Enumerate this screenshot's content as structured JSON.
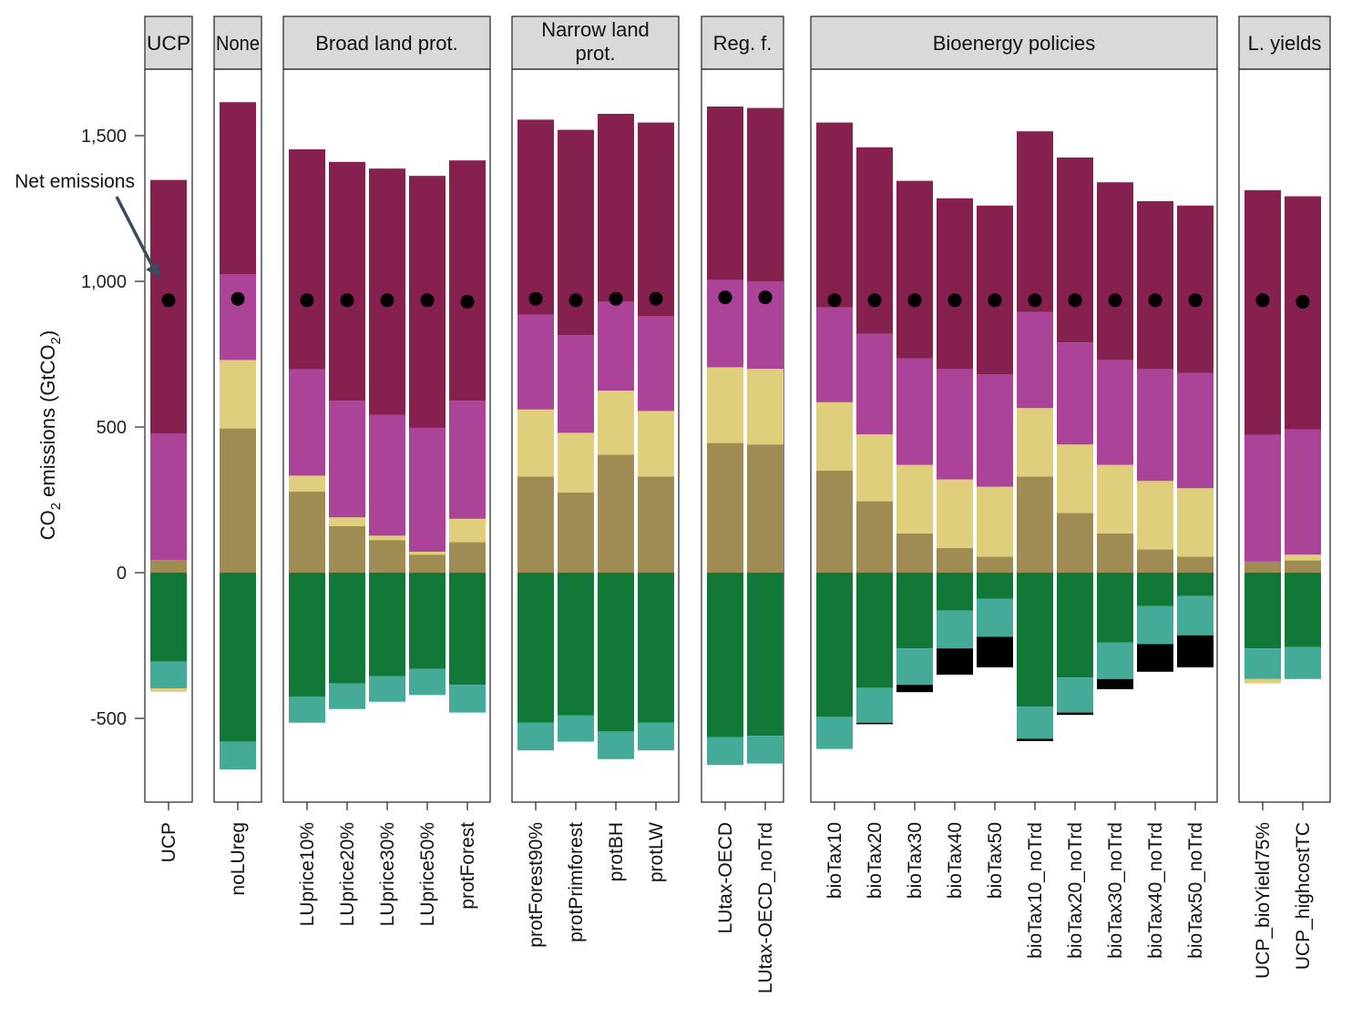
{
  "chart_data": {
    "type": "bar",
    "stacked": true,
    "ylabel": "CO2 emissions (GtCO2)",
    "ylabel_parts": {
      "pre": "CO",
      "sub1": "2",
      "mid": " emissions (GtCO",
      "sub2": "2",
      "post": ")"
    },
    "ylim": [
      -790,
      1750
    ],
    "yticks": [
      -500,
      0,
      500,
      1000,
      1500
    ],
    "ytick_labels": [
      "-500",
      "0",
      "500",
      "1,000",
      "1,500"
    ],
    "annotation": "Net emissions",
    "colors": {
      "c1": "#85204f",
      "c2": "#ab4399",
      "c3": "#dfce7c",
      "c4": "#9e8c52",
      "n1": "#117838",
      "n2": "#44ab99",
      "n3": "#dfce7c",
      "n4": "#000000",
      "net": "#000000"
    },
    "panels": [
      {
        "label": "UCP",
        "scenarios": [
          {
            "name": "UCP",
            "pos": [
              870,
              435,
              0,
              43
            ],
            "neg": [
              305,
              92,
              12,
              0
            ],
            "net": 935
          }
        ]
      },
      {
        "label": "None",
        "scenarios": [
          {
            "name": "noLUreg",
            "pos": [
              590,
              295,
              235,
              495
            ],
            "neg": [
              580,
              95,
              0,
              0
            ],
            "net": 940
          }
        ]
      },
      {
        "label": "Broad land prot.",
        "scenarios": [
          {
            "name": "LUprice10%",
            "pos": [
              755,
              365,
              55,
              278
            ],
            "neg": [
              425,
              90,
              0,
              0
            ],
            "net": 935
          },
          {
            "name": "LUprice20%",
            "pos": [
              820,
              400,
              30,
              160
            ],
            "neg": [
              380,
              88,
              0,
              0
            ],
            "net": 935
          },
          {
            "name": "LUprice30%",
            "pos": [
              845,
              415,
              15,
              112
            ],
            "neg": [
              355,
              88,
              0,
              0
            ],
            "net": 935
          },
          {
            "name": "LUprice50%",
            "pos": [
              865,
              425,
              10,
              62
            ],
            "neg": [
              330,
              90,
              0,
              0
            ],
            "net": 935
          },
          {
            "name": "protForest",
            "pos": [
              825,
              405,
              80,
              105
            ],
            "neg": [
              385,
              95,
              0,
              0
            ],
            "net": 930
          }
        ]
      },
      {
        "label": "Narrow land prot.",
        "label_lines": [
          "Narrow land",
          "prot."
        ],
        "scenarios": [
          {
            "name": "protForest90%",
            "pos": [
              670,
              325,
              230,
              330
            ],
            "neg": [
              515,
              95,
              0,
              0
            ],
            "net": 940
          },
          {
            "name": "protPrimforest",
            "pos": [
              705,
              335,
              205,
              275
            ],
            "neg": [
              490,
              90,
              0,
              0
            ],
            "net": 935
          },
          {
            "name": "protBH",
            "pos": [
              645,
              305,
              220,
              405
            ],
            "neg": [
              545,
              95,
              0,
              0
            ],
            "net": 940
          },
          {
            "name": "protLW",
            "pos": [
              665,
              325,
              225,
              330
            ],
            "neg": [
              515,
              95,
              0,
              0
            ],
            "net": 940
          }
        ]
      },
      {
        "label": "Reg. f.",
        "scenarios": [
          {
            "name": "LUtax-OECD",
            "pos": [
              595,
              300,
              260,
              445
            ],
            "neg": [
              565,
              95,
              0,
              0
            ],
            "net": 945
          },
          {
            "name": "LUtax-OECD_noTrd",
            "pos": [
              595,
              300,
              260,
              440
            ],
            "neg": [
              560,
              95,
              0,
              0
            ],
            "net": 945
          }
        ]
      },
      {
        "label": "Bioenergy policies",
        "scenarios": [
          {
            "name": "bioTax10",
            "pos": [
              635,
              325,
              235,
              350
            ],
            "neg": [
              495,
              110,
              0,
              0
            ],
            "net": 935
          },
          {
            "name": "bioTax20",
            "pos": [
              640,
              345,
              230,
              245
            ],
            "neg": [
              395,
              120,
              0,
              5
            ],
            "net": 935
          },
          {
            "name": "bioTax30",
            "pos": [
              610,
              365,
              235,
              135
            ],
            "neg": [
              260,
              125,
              0,
              25
            ],
            "net": 935
          },
          {
            "name": "bioTax40",
            "pos": [
              585,
              380,
              235,
              85
            ],
            "neg": [
              130,
              130,
              0,
              90
            ],
            "net": 935
          },
          {
            "name": "bioTax50",
            "pos": [
              580,
              385,
              240,
              55
            ],
            "neg": [
              90,
              130,
              0,
              105
            ],
            "net": 935
          },
          {
            "name": "bioTax10_noTrd",
            "pos": [
              620,
              330,
              235,
              330
            ],
            "neg": [
              460,
              110,
              0,
              8
            ],
            "net": 935
          },
          {
            "name": "bioTax20_noTrd",
            "pos": [
              635,
              350,
              235,
              205
            ],
            "neg": [
              360,
              120,
              0,
              8
            ],
            "net": 935
          },
          {
            "name": "bioTax30_noTrd",
            "pos": [
              610,
              360,
              235,
              135
            ],
            "neg": [
              240,
              125,
              0,
              35
            ],
            "net": 935
          },
          {
            "name": "bioTax40_noTrd",
            "pos": [
              575,
              385,
              235,
              80
            ],
            "neg": [
              115,
              130,
              0,
              95
            ],
            "net": 935
          },
          {
            "name": "bioTax50_noTrd",
            "pos": [
              575,
              395,
              235,
              55
            ],
            "neg": [
              80,
              135,
              0,
              110
            ],
            "net": 935
          }
        ]
      },
      {
        "label": "L. yields",
        "scenarios": [
          {
            "name": "UCP_bioYield75%",
            "pos": [
              840,
              435,
              0,
              38
            ],
            "neg": [
              260,
              105,
              15,
              0
            ],
            "net": 935
          },
          {
            "name": "UCP_highcostTC",
            "pos": [
              800,
              430,
              20,
              42
            ],
            "neg": [
              255,
              110,
              0,
              0
            ],
            "net": 930
          }
        ]
      }
    ]
  }
}
